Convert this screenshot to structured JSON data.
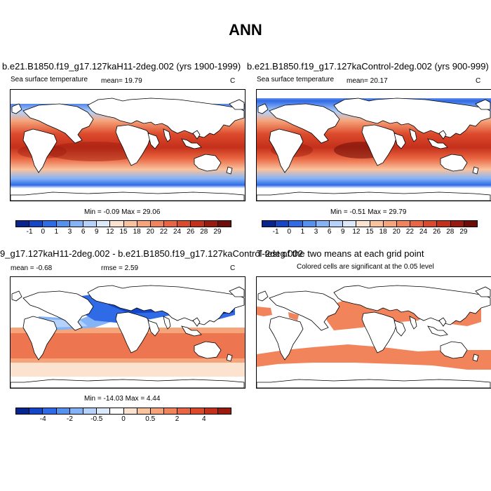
{
  "figure": {
    "title": "ANN"
  },
  "panel_tl": {
    "title": "b.e21.B1850.f19_g17.127kaH11-2deg.002 (yrs 1900-1999)",
    "variable": "Sea surface temperature",
    "mean_text": "mean=  19.79",
    "units": "C",
    "minmax": "Min =  -0.09 Max =  29.06"
  },
  "panel_tr": {
    "title": "b.e21.B1850.f19_g17.127kaControl-2deg.002 (yrs 900-999)",
    "variable": "Sea surface temperature",
    "mean_text": "mean=  20.17",
    "units": "C",
    "minmax": "Min =  -0.51 Max =  29.79"
  },
  "panel_bl": {
    "title": "9_g17.127kaH11-2deg.002 - b.e21.B1850.f19_g17.127kaControl-2deg.002",
    "mean_text": "mean =  -0.68",
    "rmse_text": "rmse =   2.59",
    "units": "C",
    "minmax": "Min = -14.03 Max =   4.44"
  },
  "panel_br": {
    "title": "T-test of the two means at each grid point",
    "subtitle": "Colored cells are significant at the 0.05 level"
  },
  "colorbar_abs": {
    "colors": [
      "#08258f",
      "#1446c8",
      "#2f6be6",
      "#5592f0",
      "#85b4f6",
      "#b4d2fa",
      "#dce9fb",
      "#fbe3cf",
      "#f9c39e",
      "#f6a47a",
      "#f2845c",
      "#ea6642",
      "#dc4a2c",
      "#c4301b",
      "#9a1a0e",
      "#6e0c07"
    ],
    "labels": [
      "-1",
      "0",
      "1",
      "3",
      "6",
      "9",
      "12",
      "15",
      "18",
      "20",
      "22",
      "24",
      "26",
      "28",
      "29"
    ]
  },
  "colorbar_diff": {
    "colors": [
      "#08258f",
      "#1446c8",
      "#2f6be6",
      "#5592f0",
      "#85b4f6",
      "#b4d2fa",
      "#dce9fb",
      "#ffffff",
      "#fbe3cf",
      "#f9c39e",
      "#f6a47a",
      "#f2845c",
      "#ea6642",
      "#dc4a2c",
      "#c4301b",
      "#9a1a0e"
    ],
    "labels": [
      "-4",
      "-2",
      "-0.5",
      "0",
      "0.5",
      "2",
      "4"
    ],
    "label_positions": [
      2,
      4,
      6,
      8,
      10,
      12,
      14
    ]
  }
}
